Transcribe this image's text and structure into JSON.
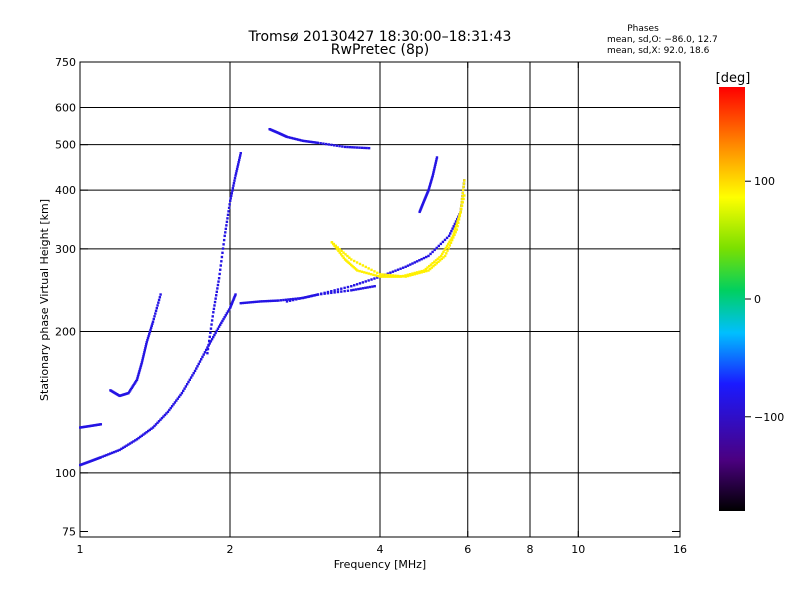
{
  "chart_data": {
    "type": "scatter",
    "title": "Tromsø 20130427 18:30:00–18:31:43",
    "subtitle": "RwPretec (8p)",
    "stats": {
      "heading": "Phases",
      "line_o": "mean, sd,O: −86.0, 12.7",
      "line_x": "mean, sd,X:  92.0, 18.6"
    },
    "xlabel": "Frequency [MHz]",
    "ylabel": "Stationary phase Virtual Height [km]",
    "x_scale": "log",
    "y_scale": "log",
    "xlim": [
      1,
      16
    ],
    "ylim": [
      73,
      750
    ],
    "x_ticks": [
      1,
      2,
      4,
      6,
      8,
      10,
      16
    ],
    "x_tick_labels": [
      "1",
      "2",
      "4",
      "6",
      "8",
      "10",
      "16"
    ],
    "y_ticks": [
      75,
      100,
      200,
      300,
      400,
      500,
      600,
      750
    ],
    "y_tick_labels": [
      "75",
      "100",
      "200",
      "300",
      "400",
      "500",
      "600",
      "750"
    ],
    "vertical_gridlines": [
      2,
      4,
      6,
      8,
      10
    ],
    "horizontal_gridlines": [
      100,
      200,
      300,
      400,
      500,
      600
    ],
    "colorbar": {
      "label": "[deg]",
      "range": [
        -180,
        180
      ],
      "tick_values": [
        100,
        0,
        -100
      ],
      "tick_labels": [
        "100",
        "0",
        "−100"
      ]
    },
    "series": [
      {
        "mode": "O",
        "phase_mean": -86.0,
        "traces": [
          {
            "x": [
              1.0,
              1.05,
              1.1,
              1.2,
              1.3,
              1.4,
              1.5,
              1.6,
              1.7,
              1.8,
              1.9,
              2.0,
              2.05
            ],
            "y": [
              104,
              106,
              108,
              112,
              118,
              125,
              135,
              148,
              165,
              185,
              205,
              225,
              240
            ]
          },
          {
            "x": [
              1.15,
              1.2,
              1.25,
              1.3,
              1.33,
              1.36,
              1.4,
              1.45
            ],
            "y": [
              150,
              146,
              148,
              158,
              172,
              190,
              210,
              240
            ]
          },
          {
            "x": [
              1.0,
              1.05,
              1.1
            ],
            "y": [
              125,
              126,
              127
            ]
          },
          {
            "x": [
              1.8,
              1.85,
              1.9,
              1.95,
              2.0,
              2.05,
              2.1
            ],
            "y": [
              180,
              220,
              260,
              320,
              380,
              430,
              480
            ]
          },
          {
            "x": [
              2.1,
              2.3,
              2.5,
              2.8,
              3.0,
              3.5,
              3.9
            ],
            "y": [
              230,
              232,
              233,
              236,
              240,
              245,
              250
            ]
          },
          {
            "x": [
              2.4,
              2.5,
              2.6,
              2.8,
              3.0,
              3.4,
              3.8
            ],
            "y": [
              540,
              530,
              520,
              510,
              505,
              495,
              492
            ]
          },
          {
            "x": [
              2.6,
              3.0,
              3.5,
              4.0,
              4.5,
              5.0,
              5.5,
              5.8,
              5.9
            ],
            "y": [
              232,
              240,
              250,
              262,
              275,
              290,
              320,
              360,
              420
            ]
          },
          {
            "x": [
              4.8,
              4.9,
              5.0,
              5.1,
              5.2
            ],
            "y": [
              360,
              380,
              400,
              430,
              470
            ]
          }
        ]
      },
      {
        "mode": "X",
        "phase_mean": 92.0,
        "traces": [
          {
            "x": [
              3.2,
              3.5,
              4.0,
              4.5,
              5.0,
              5.4,
              5.7,
              5.9
            ],
            "y": [
              310,
              285,
              265,
              262,
              270,
              290,
              330,
              390
            ]
          },
          {
            "x": [
              3.2,
              3.4,
              3.6,
              4.0,
              4.4,
              4.9,
              5.3,
              5.6,
              5.8,
              5.9
            ],
            "y": [
              310,
              285,
              270,
              262,
              262,
              270,
              290,
              320,
              360,
              420
            ]
          }
        ]
      }
    ]
  }
}
